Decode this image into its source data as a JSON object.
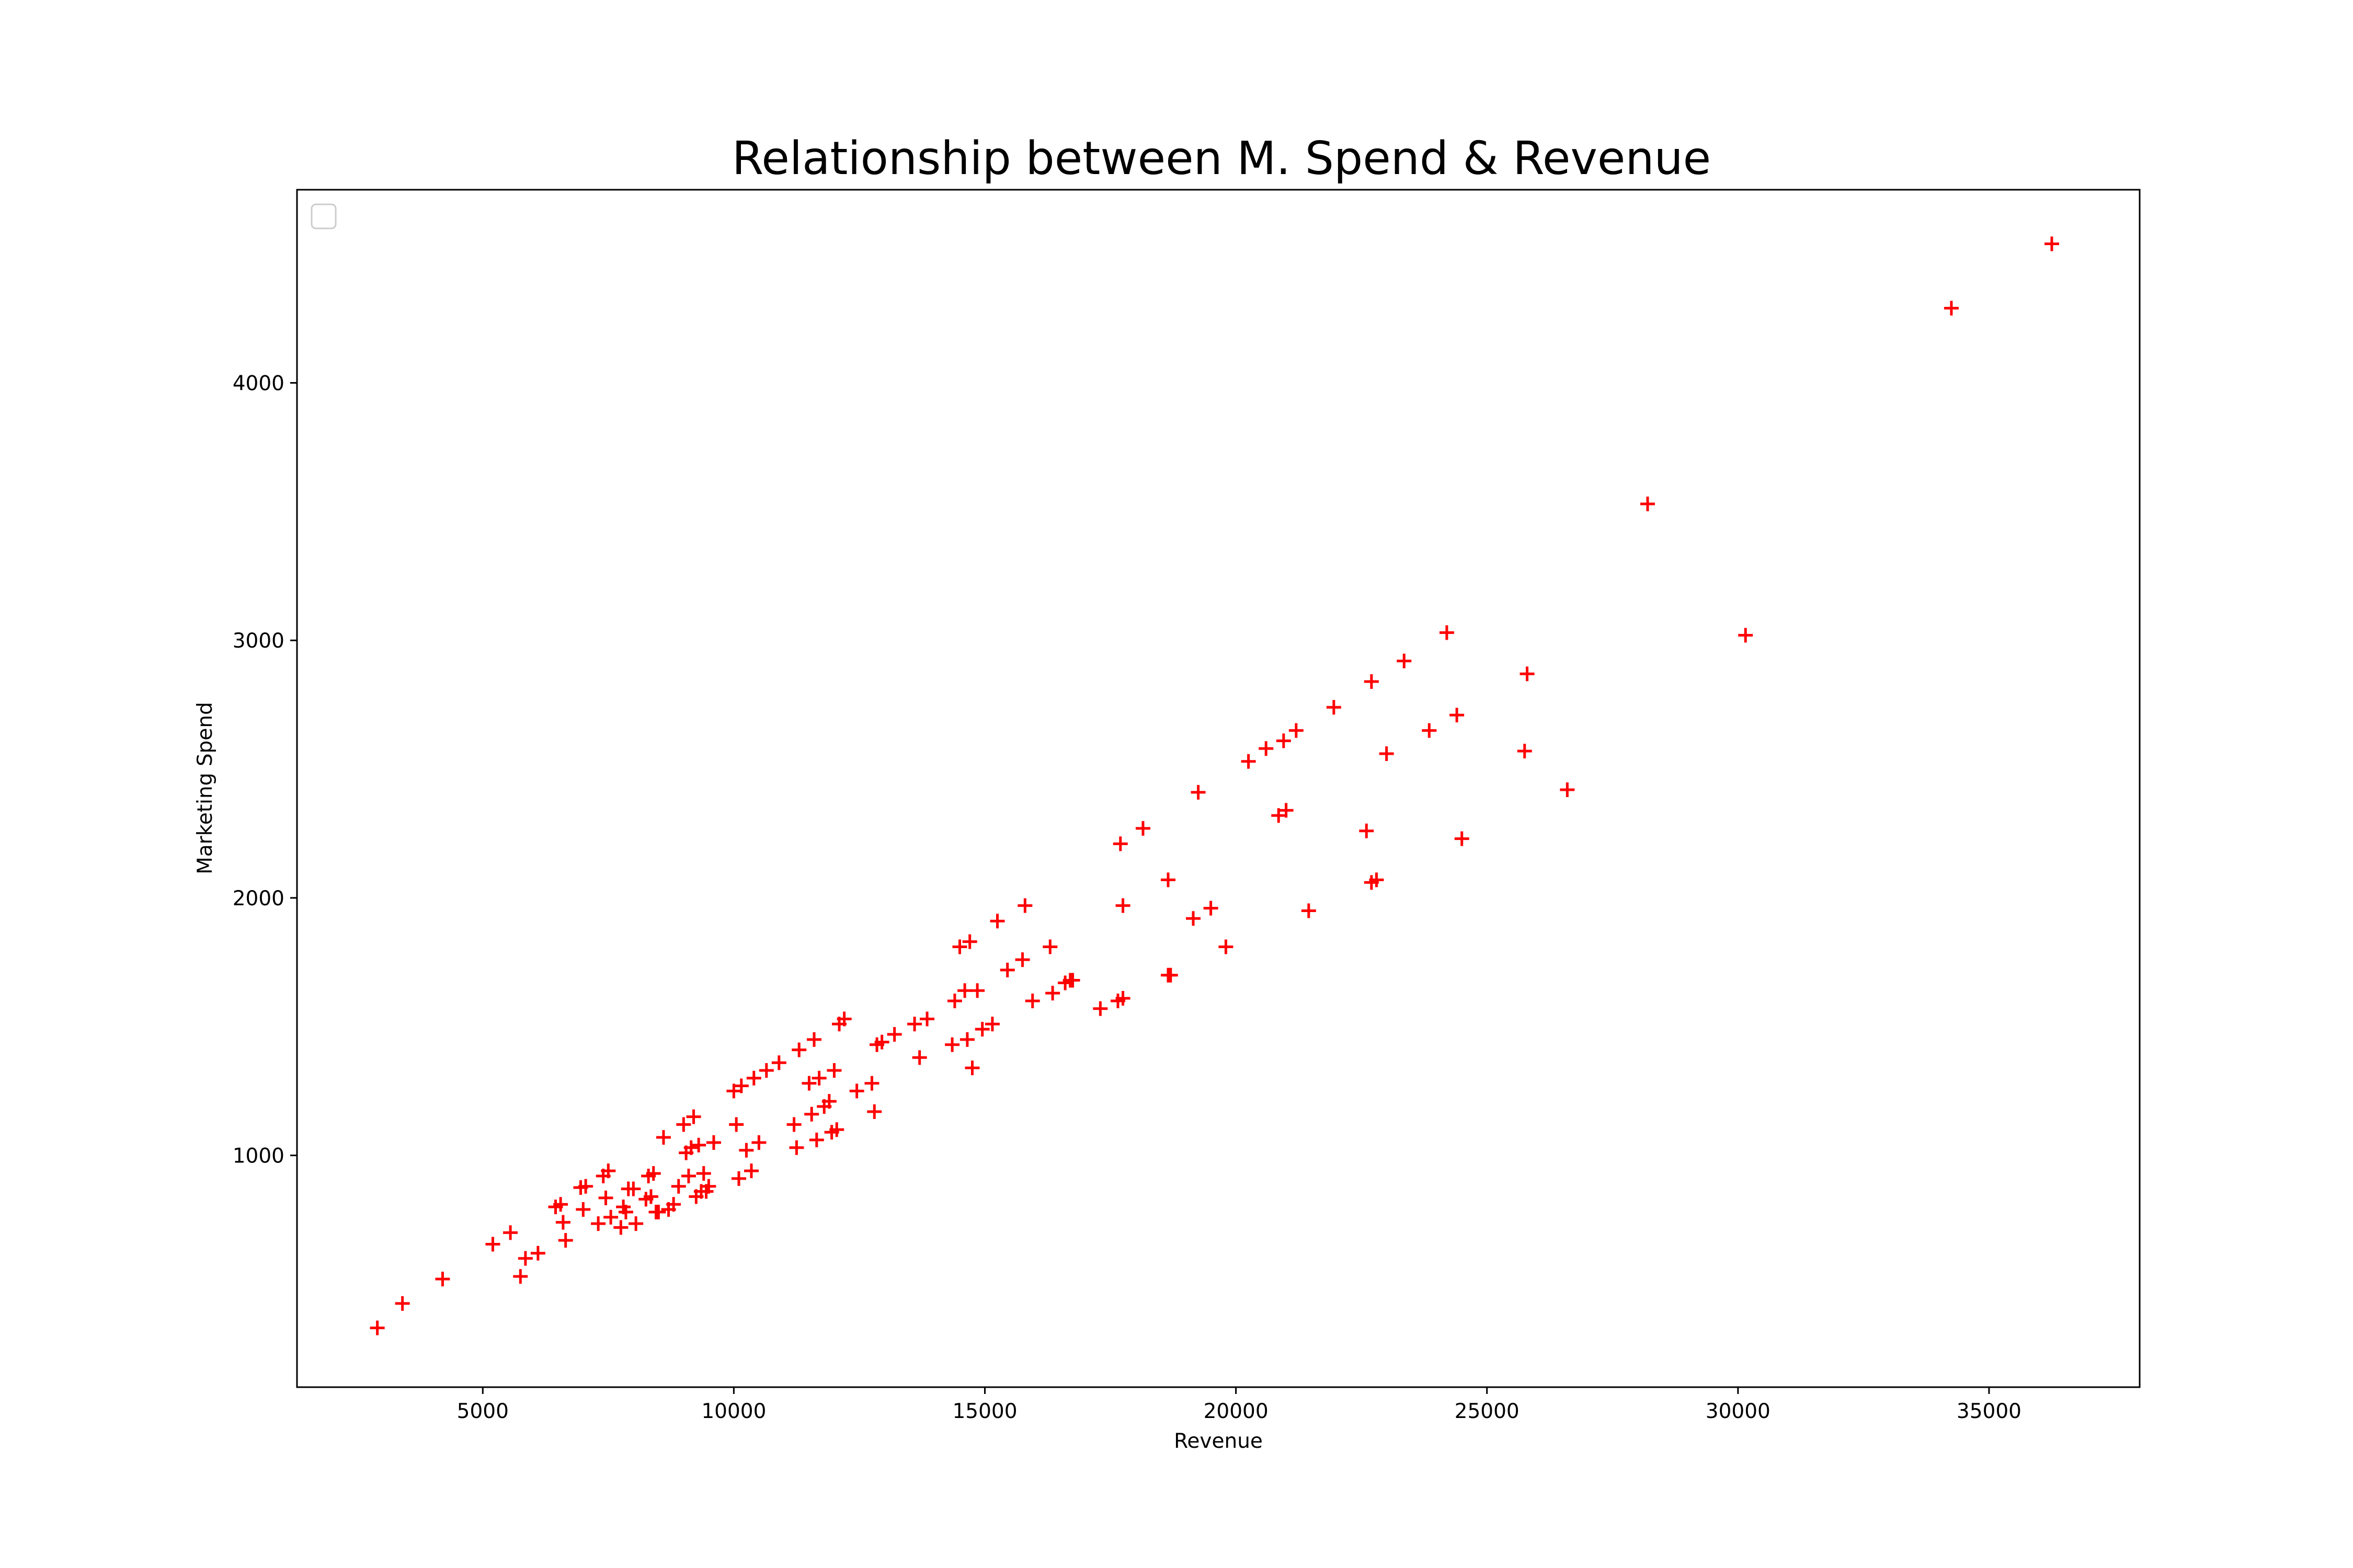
{
  "chart_data": {
    "type": "scatter",
    "title": "Relationship between M. Spend & Revenue",
    "xlabel": "Revenue",
    "ylabel": "Marketing Spend",
    "xlim": [
      1300,
      38000
    ],
    "ylim": [
      100,
      4750
    ],
    "xticks": [
      5000,
      10000,
      15000,
      20000,
      25000,
      30000,
      35000
    ],
    "yticks": [
      1000,
      2000,
      3000,
      4000
    ],
    "marker": "+",
    "marker_color": "#ff0000",
    "grid": false,
    "legend": {
      "placement": "top-left",
      "entries": []
    },
    "series": [
      {
        "x": [
          2900,
          3400,
          4200,
          5200,
          5550,
          5750,
          5850,
          6100,
          6450,
          6550,
          6600,
          6650,
          6950,
          7000,
          7050,
          7300,
          7400,
          7450,
          7500,
          7550,
          7750,
          7800,
          7850,
          7900,
          8000,
          8050,
          8250,
          8300,
          8350,
          8400,
          8450,
          8500,
          8600,
          8700,
          8800,
          8900,
          9000,
          9050,
          9100,
          9150,
          9200,
          9250,
          9300,
          9350,
          9400,
          9450,
          9500,
          9600,
          10000,
          10050,
          10100,
          10150,
          10250,
          10350,
          10400,
          10500,
          10650,
          10900,
          11200,
          11250,
          11300,
          11500,
          11550,
          11600,
          11650,
          11700,
          11800,
          11900,
          11950,
          12000,
          12050,
          12100,
          12200,
          12450,
          12750,
          12800,
          12850,
          12950,
          13200,
          13600,
          13700,
          13850,
          14350,
          14400,
          14500,
          14600,
          14650,
          14700,
          14750,
          14850,
          14950,
          15150,
          15250,
          15450,
          15750,
          15800,
          15950,
          16300,
          16350,
          16600,
          16700,
          16750,
          17300,
          17650,
          17700,
          17750,
          17750,
          18150,
          18650,
          18650,
          18700,
          19150,
          19250,
          19500,
          19800,
          20250,
          20600,
          20850,
          20950,
          21000,
          21200,
          21450,
          21950,
          22600,
          22700,
          22700,
          22800,
          23000,
          23350,
          23850,
          24200,
          24400,
          24500,
          25750,
          25800,
          26600,
          28200,
          30150,
          34250,
          36250
        ],
        "y": [
          330,
          425,
          520,
          655,
          700,
          530,
          600,
          620,
          800,
          810,
          740,
          670,
          875,
          790,
          880,
          735,
          920,
          835,
          940,
          760,
          720,
          800,
          780,
          870,
          870,
          735,
          830,
          920,
          840,
          930,
          780,
          780,
          1070,
          790,
          810,
          880,
          1120,
          1010,
          920,
          1030,
          1150,
          840,
          1040,
          860,
          930,
          860,
          880,
          1050,
          1250,
          1120,
          910,
          1270,
          1020,
          940,
          1300,
          1050,
          1330,
          1360,
          1120,
          1030,
          1410,
          1280,
          1160,
          1450,
          1060,
          1300,
          1190,
          1210,
          1090,
          1330,
          1100,
          1510,
          1530,
          1250,
          1280,
          1170,
          1430,
          1440,
          1470,
          1510,
          1380,
          1530,
          1430,
          1600,
          1810,
          1640,
          1450,
          1830,
          1340,
          1640,
          1490,
          1510,
          1910,
          1720,
          1760,
          1970,
          1600,
          1810,
          1630,
          1670,
          1680,
          1680,
          1570,
          1600,
          2210,
          1610,
          1970,
          2270,
          2070,
          1700,
          1700,
          1920,
          2410,
          1960,
          1810,
          2530,
          2580,
          2320,
          2610,
          2340,
          2650,
          1950,
          2740,
          2260,
          2840,
          2060,
          2070,
          2560,
          2920,
          2650,
          3030,
          2710,
          2230,
          2570,
          2870,
          2420,
          3530,
          3020,
          4290,
          4540
        ]
      }
    ]
  }
}
